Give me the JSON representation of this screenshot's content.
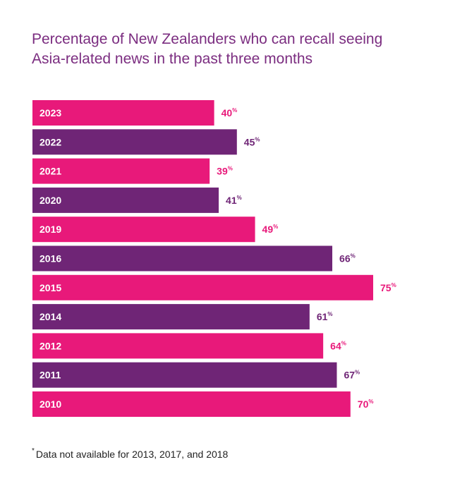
{
  "title_lines": [
    "Percentage of New Zealanders who can recall seeing",
    "Asia-related news in the past three months"
  ],
  "footnote": {
    "marker": "*",
    "text": "Data not available for 2013, 2017, and 2018"
  },
  "colors": {
    "pink": "#e8197a",
    "purple": "#6f2576",
    "title": "#7b2d80"
  },
  "chart_data": {
    "type": "bar",
    "orientation": "horizontal",
    "title": "Percentage of New Zealanders who can recall seeing Asia-related news in the past three months",
    "categories": [
      "2023",
      "2022",
      "2021",
      "2020",
      "2019",
      "2016",
      "2015",
      "2014",
      "2012",
      "2011",
      "2010"
    ],
    "values": [
      40,
      45,
      39,
      41,
      49,
      66,
      75,
      61,
      64,
      67,
      70
    ],
    "value_unit": "%",
    "bar_colors": [
      "pink",
      "purple",
      "pink",
      "purple",
      "pink",
      "purple",
      "pink",
      "purple",
      "pink",
      "purple",
      "pink"
    ],
    "grid": false,
    "legend": "none"
  }
}
